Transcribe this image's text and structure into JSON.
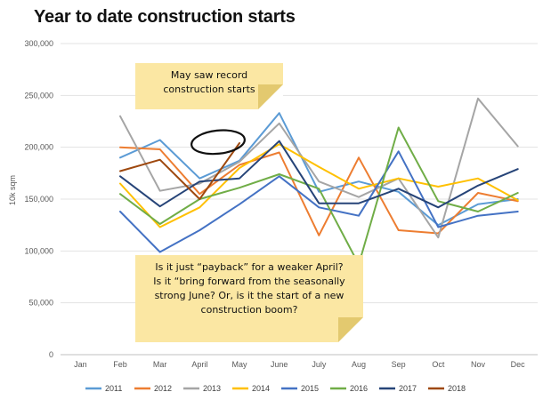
{
  "chart_data": {
    "type": "line",
    "title": "Year to date construction starts",
    "xlabel": "",
    "ylabel": "10k sqm",
    "ylim": [
      0,
      300000
    ],
    "yticks": [
      "0",
      "50,000",
      "100,000",
      "150,000",
      "200,000",
      "250,000",
      "300,000"
    ],
    "ytick_values": [
      0,
      50000,
      100000,
      150000,
      200000,
      250000,
      300000
    ],
    "categories": [
      "Jan",
      "Feb",
      "Mar",
      "April",
      "May",
      "June",
      "July",
      "Aug",
      "Sep",
      "Oct",
      "Nov",
      "Dec"
    ],
    "grid": true,
    "legend_position": "bottom",
    "series": [
      {
        "name": "2011",
        "color": "#5b9bd5",
        "values": [
          null,
          190000,
          207000,
          170000,
          187000,
          233000,
          157000,
          167000,
          157000,
          125000,
          145000,
          150000
        ]
      },
      {
        "name": "2012",
        "color": "#ed7d31",
        "values": [
          null,
          200000,
          198000,
          155000,
          183000,
          195000,
          115000,
          190000,
          120000,
          117000,
          156000,
          148000
        ]
      },
      {
        "name": "2013",
        "color": "#a5a5a5",
        "values": [
          null,
          230000,
          158000,
          165000,
          186000,
          223000,
          167000,
          152000,
          170000,
          113000,
          247000,
          201000
        ]
      },
      {
        "name": "2014",
        "color": "#ffc000",
        "values": [
          null,
          165000,
          123000,
          142000,
          180000,
          203000,
          181000,
          160000,
          170000,
          162000,
          170000,
          149000
        ]
      },
      {
        "name": "2015",
        "color": "#4472c4",
        "values": [
          null,
          138000,
          99000,
          120000,
          145000,
          172000,
          142000,
          134000,
          196000,
          123000,
          134000,
          138000
        ]
      },
      {
        "name": "2016",
        "color": "#70ad47",
        "values": [
          null,
          155000,
          126000,
          150000,
          161000,
          174000,
          160000,
          87000,
          219000,
          148000,
          138000,
          156000
        ]
      },
      {
        "name": "2017",
        "color": "#264478",
        "values": [
          null,
          172000,
          143000,
          167000,
          170000,
          206000,
          146000,
          146000,
          160000,
          142000,
          163000,
          179000
        ]
      },
      {
        "name": "2018",
        "color": "#9e480e",
        "values": [
          null,
          177000,
          188000,
          150000,
          204000,
          null,
          null,
          null,
          null,
          null,
          null,
          null
        ]
      }
    ],
    "annotations": [
      {
        "lines": [
          "May saw record",
          "construction starts"
        ]
      },
      {
        "lines": [
          "Is it just “payback” for a weaker April?",
          "Is it “bring forward from the seasonally",
          "strong June? Or, is it the start of a new",
          "construction boom?"
        ]
      }
    ],
    "highlight_category": "May"
  }
}
